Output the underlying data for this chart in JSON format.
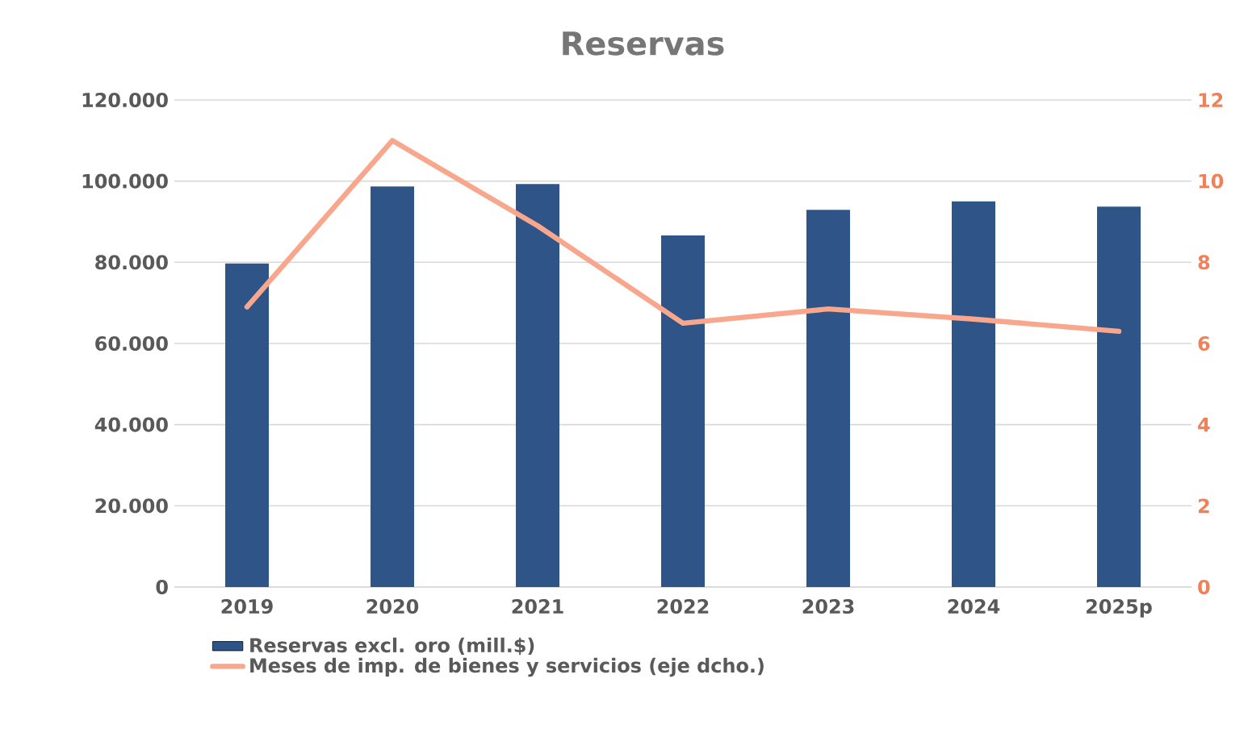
{
  "chart_data": {
    "type": "bar",
    "title": "Reservas",
    "categories": [
      "2019",
      "2020",
      "2021",
      "2022",
      "2023",
      "2024",
      "2025p"
    ],
    "series": [
      {
        "name": "Reservas excl. oro (mill.$)",
        "color": "#2f5487",
        "values": [
          79700,
          98700,
          99300,
          86600,
          92900,
          95000,
          93700
        ]
      },
      {
        "name": "Meses de imp. de bienes y servicios (eje dcho.)",
        "type": "line",
        "axis": "y2",
        "color": "#f8a68c",
        "values": [
          6.9,
          11.0,
          8.9,
          6.5,
          6.85,
          6.6,
          6.3
        ]
      }
    ],
    "ylim": [
      0,
      120000
    ],
    "yticks": [
      {
        "value": 0,
        "label": "0"
      },
      {
        "value": 20000,
        "label": "20.000"
      },
      {
        "value": 40000,
        "label": "40.000"
      },
      {
        "value": 60000,
        "label": "60.000"
      },
      {
        "value": 80000,
        "label": "80.000"
      },
      {
        "value": 100000,
        "label": "100.000"
      },
      {
        "value": 120000,
        "label": "120.000"
      }
    ],
    "y2lim": [
      0,
      12
    ],
    "y2ticks": [
      0,
      2,
      4,
      6,
      8,
      10,
      12
    ],
    "grid": "y",
    "legend": "bottom",
    "marker": "none",
    "line_style": "solid"
  }
}
